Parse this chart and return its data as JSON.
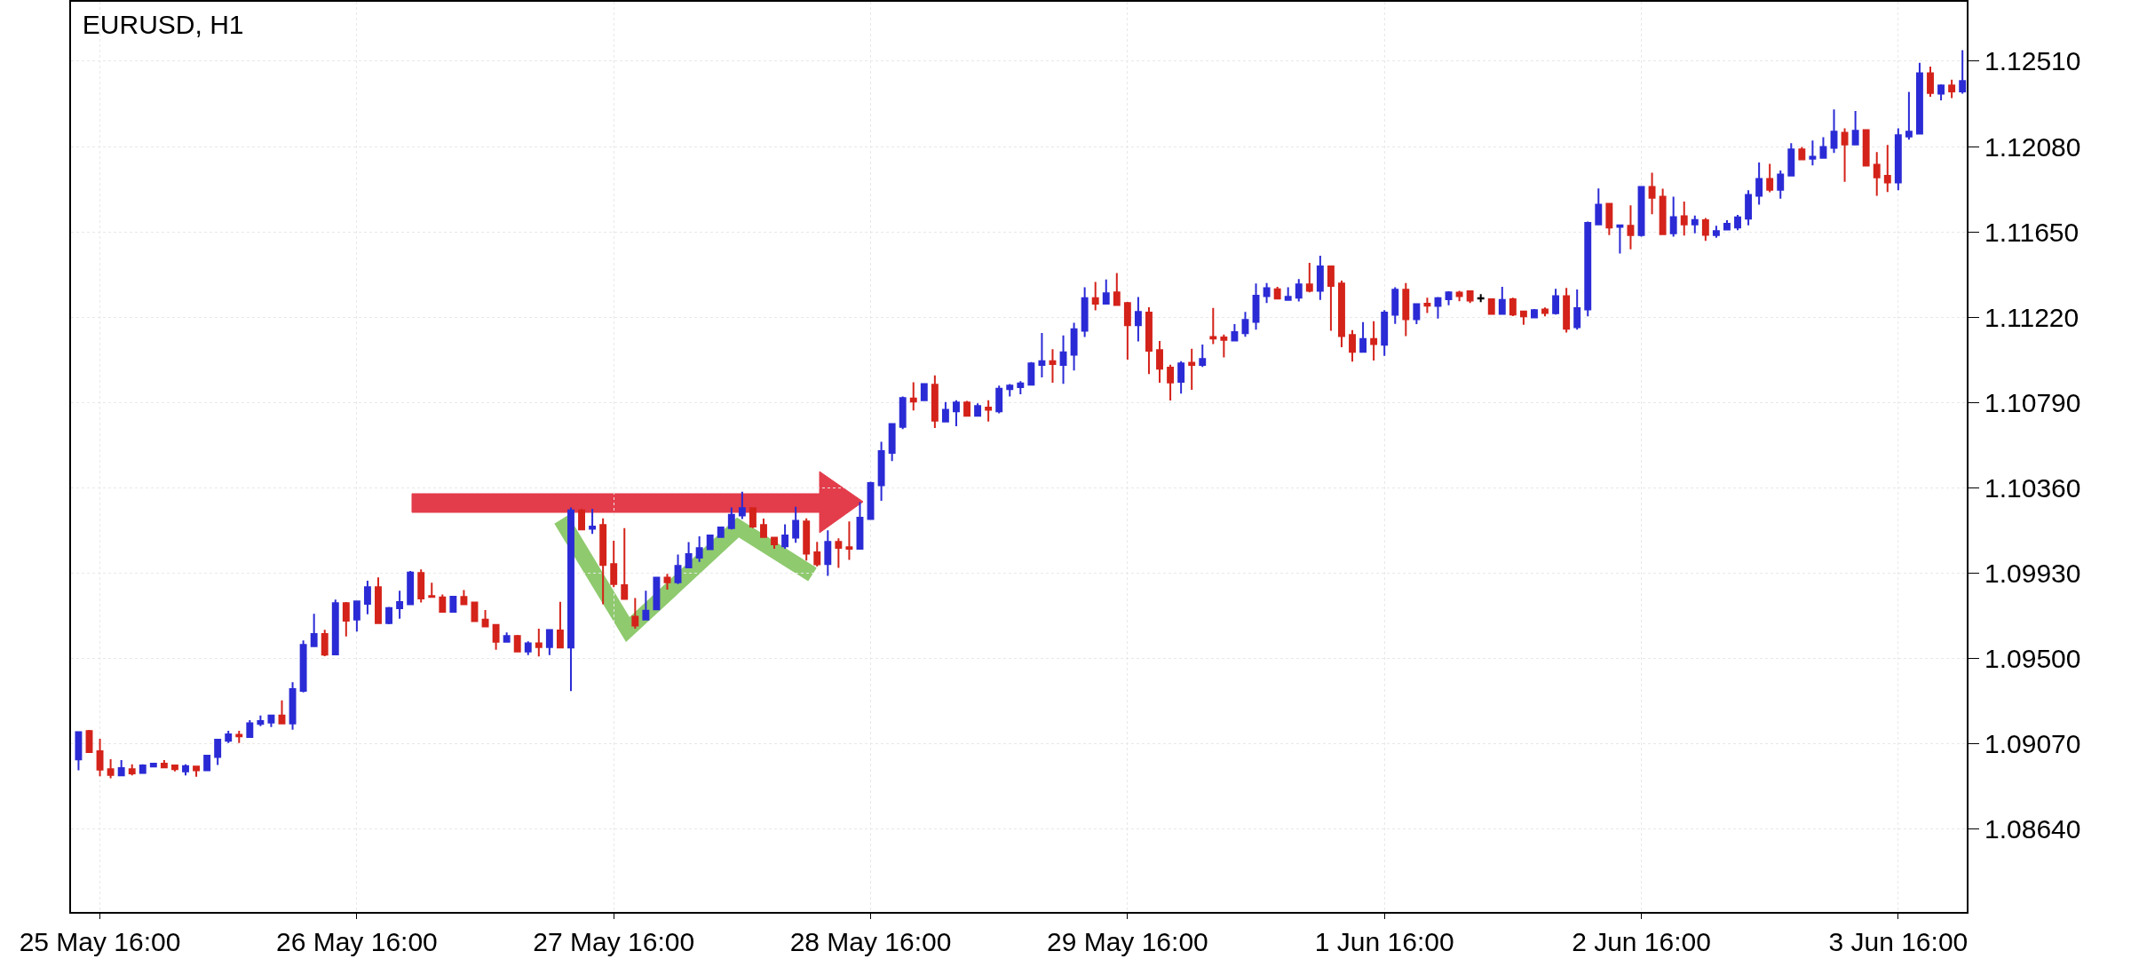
{
  "chart_data": {
    "type": "candlestick",
    "title": "EURUSD, H1",
    "categories": [
      null,
      null,
      "25 May 16:00",
      null,
      null,
      null,
      null,
      null,
      null,
      null,
      null,
      null,
      null,
      null,
      null,
      null,
      null,
      null,
      null,
      null,
      null,
      null,
      null,
      null,
      null,
      null,
      "26 May 16:00",
      null,
      null,
      null,
      null,
      null,
      null,
      null,
      null,
      null,
      null,
      null,
      null,
      null,
      null,
      null,
      null,
      null,
      null,
      null,
      null,
      null,
      null,
      null,
      "27 May 16:00",
      null,
      null,
      null,
      null,
      null,
      null,
      null,
      null,
      null,
      null,
      null,
      null,
      null,
      null,
      null,
      null,
      null,
      null,
      null,
      null,
      null,
      null,
      null,
      "28 May 16:00",
      null,
      null,
      null,
      null,
      null,
      null,
      null,
      null,
      null,
      null,
      null,
      null,
      null,
      null,
      null,
      null,
      null,
      null,
      null,
      null,
      null,
      null,
      null,
      "29 May 16:00",
      null,
      null,
      null,
      null,
      null,
      null,
      null,
      null,
      null,
      null,
      null,
      null,
      null,
      null,
      null,
      null,
      null,
      null,
      null,
      null,
      null,
      null,
      null,
      "1 Jun 16:00",
      null,
      null,
      null,
      null,
      null,
      null,
      null,
      null,
      null,
      null,
      null,
      null,
      null,
      null,
      null,
      null,
      null,
      null,
      null,
      null,
      null,
      null,
      null,
      "2 Jun 16:00",
      null,
      null,
      null,
      null,
      null,
      null,
      null,
      null,
      null,
      null,
      null,
      null,
      null,
      null,
      null,
      null,
      null,
      null,
      null,
      null,
      null,
      null,
      null,
      "3 Jun 16:00",
      null,
      null,
      null,
      null,
      null,
      null
    ],
    "ohlc": [
      [
        1.08989,
        1.0913,
        1.08934,
        1.09127
      ],
      [
        1.09132,
        1.09138,
        1.09023,
        1.09026
      ],
      [
        1.09031,
        1.09093,
        1.08904,
        1.08938
      ],
      [
        1.0894,
        1.0899,
        1.08894,
        1.08911
      ],
      [
        1.08908,
        1.08986,
        1.08908,
        1.08946
      ],
      [
        1.0894,
        1.08964,
        1.08908,
        1.08919
      ],
      [
        1.08921,
        1.08964,
        1.08919,
        1.08959
      ],
      [
        1.08953,
        1.08971,
        1.08952,
        1.08968
      ],
      [
        1.08968,
        1.08986,
        1.08949,
        1.08949
      ],
      [
        1.08959,
        1.08959,
        1.08929,
        1.0894
      ],
      [
        1.08929,
        1.08964,
        1.08908,
        1.08955
      ],
      [
        1.08953,
        1.08953,
        1.08902,
        1.08934
      ],
      [
        1.08934,
        1.09008,
        1.08934,
        1.09008
      ],
      [
        1.09001,
        1.09093,
        1.08961,
        1.09089
      ],
      [
        1.09083,
        1.09134,
        1.09072,
        1.09116
      ],
      [
        1.09113,
        1.09134,
        1.09072,
        1.09105
      ],
      [
        1.09102,
        1.09187,
        1.09099,
        1.09172
      ],
      [
        1.09168,
        1.09211,
        1.09157,
        1.09183
      ],
      [
        1.09175,
        1.09214,
        1.09153,
        1.09211
      ],
      [
        1.09211,
        1.09287,
        1.09171,
        1.09171
      ],
      [
        1.09171,
        1.09379,
        1.09139,
        1.09344
      ],
      [
        1.09335,
        1.09589,
        1.09327,
        1.09567
      ],
      [
        1.0956,
        1.09724,
        1.0956,
        1.09622
      ],
      [
        1.09622,
        1.09643,
        1.0951,
        1.09518
      ],
      [
        1.09519,
        1.09795,
        1.09515,
        1.09777
      ],
      [
        1.09777,
        1.09783,
        1.09609,
        1.09689
      ],
      [
        1.09694,
        1.09791,
        1.09634,
        1.09786
      ],
      [
        1.09774,
        1.0989,
        1.09721,
        1.09858
      ],
      [
        1.09858,
        1.09907,
        1.09676,
        1.09676
      ],
      [
        1.09676,
        1.09758,
        1.09671,
        1.09753
      ],
      [
        1.09751,
        1.0984,
        1.09699,
        1.09783
      ],
      [
        1.09772,
        1.0994,
        1.09772,
        1.09932
      ],
      [
        1.0993,
        1.09947,
        1.09781,
        1.09801
      ],
      [
        1.09813,
        1.0988,
        1.09809,
        1.09809
      ],
      [
        1.09806,
        1.09821,
        1.09731,
        1.09734
      ],
      [
        1.09734,
        1.09813,
        1.09734,
        1.0981
      ],
      [
        1.09809,
        1.09843,
        1.09772,
        1.09772
      ],
      [
        1.09781,
        1.09784,
        1.09687,
        1.09687
      ],
      [
        1.09694,
        1.09742,
        1.0966,
        1.0966
      ],
      [
        1.09667,
        1.09672,
        1.09542,
        1.09582
      ],
      [
        1.09582,
        1.0963,
        1.09582,
        1.09612
      ],
      [
        1.09612,
        1.09617,
        1.0953,
        1.09533
      ],
      [
        1.09533,
        1.09585,
        1.09515,
        1.09575
      ],
      [
        1.09575,
        1.09649,
        1.09508,
        1.09556
      ],
      [
        1.09556,
        1.09642,
        1.09515,
        1.09642
      ],
      [
        1.09639,
        1.09784,
        1.09553,
        1.09553
      ],
      [
        1.09553,
        1.1026,
        1.09334,
        1.10245
      ],
      [
        1.10245,
        1.10253,
        1.10149,
        1.10149
      ],
      [
        1.10152,
        1.10253,
        1.10126,
        1.10163
      ],
      [
        1.10171,
        1.10205,
        1.09772,
        1.0997
      ],
      [
        1.09974,
        1.10092,
        1.09858,
        1.09873
      ],
      [
        1.09868,
        1.10156,
        1.09798,
        1.09798
      ],
      [
        1.09709,
        1.09803,
        1.09649,
        1.09664
      ],
      [
        1.09694,
        1.0984,
        1.09694,
        1.09739
      ],
      [
        1.09746,
        1.09906,
        1.09746,
        1.09906
      ],
      [
        1.09906,
        1.09925,
        1.09846,
        1.09883
      ],
      [
        1.09883,
        1.10022,
        1.09873,
        1.09965
      ],
      [
        1.09958,
        1.10085,
        1.09958,
        1.10025
      ],
      [
        1.10007,
        1.10114,
        1.09985,
        1.10055
      ],
      [
        1.10049,
        1.10119,
        1.10049,
        1.10119
      ],
      [
        1.10111,
        1.10163,
        1.10111,
        1.10159
      ],
      [
        1.10156,
        1.1026,
        1.10149,
        1.10223
      ],
      [
        1.10219,
        1.10339,
        1.10201,
        1.10256
      ],
      [
        1.10256,
        1.1026,
        1.10156,
        1.10164
      ],
      [
        1.10171,
        1.10204,
        1.10111,
        1.10111
      ],
      [
        1.10107,
        1.10107,
        1.10052,
        1.10074
      ],
      [
        1.10064,
        1.10175,
        1.10052,
        1.10119
      ],
      [
        1.10107,
        1.10263,
        1.10082,
        1.10193
      ],
      [
        1.10189,
        1.10205,
        1.09992,
        1.10027
      ],
      [
        1.10034,
        1.10086,
        1.09962,
        1.09973
      ],
      [
        1.09974,
        1.10144,
        1.09915,
        1.10086
      ],
      [
        1.10086,
        1.10104,
        1.09955,
        1.10056
      ],
      [
        1.10059,
        1.10189,
        1.09995,
        1.10052
      ],
      [
        1.10052,
        1.10287,
        1.10052,
        1.10208
      ],
      [
        1.10201,
        1.1039,
        1.10201,
        1.10383
      ],
      [
        1.10372,
        1.10591,
        1.10293,
        1.10544
      ],
      [
        1.10535,
        1.10681,
        1.10494,
        1.10681
      ],
      [
        1.10666,
        1.10819,
        1.10655,
        1.10812
      ],
      [
        1.10809,
        1.10891,
        1.10749,
        1.10794
      ],
      [
        1.108,
        1.10886,
        1.108,
        1.10882
      ],
      [
        1.10879,
        1.10926,
        1.1066,
        1.10697
      ],
      [
        1.10693,
        1.10792,
        1.10693,
        1.10752
      ],
      [
        1.10745,
        1.10801,
        1.1067,
        1.10789
      ],
      [
        1.10789,
        1.10797,
        1.10722,
        1.10722
      ],
      [
        1.10722,
        1.10785,
        1.10719,
        1.10771
      ],
      [
        1.10764,
        1.10801,
        1.10693,
        1.10752
      ],
      [
        1.10745,
        1.10874,
        1.10734,
        1.10859
      ],
      [
        1.10856,
        1.10882,
        1.10819,
        1.10874
      ],
      [
        1.10867,
        1.10897,
        1.10831,
        1.10886
      ],
      [
        1.10879,
        1.10993,
        1.10879,
        1.10986
      ],
      [
        1.10979,
        1.1114,
        1.10916,
        1.10998
      ],
      [
        1.10998,
        1.11058,
        1.10889,
        1.10983
      ],
      [
        1.10978,
        1.11127,
        1.10883,
        1.11042
      ],
      [
        1.1103,
        1.11191,
        1.1095,
        1.11159
      ],
      [
        1.11151,
        1.1137,
        1.1112,
        1.11315
      ],
      [
        1.11315,
        1.11397,
        1.11254,
        1.11288
      ],
      [
        1.11288,
        1.1141,
        1.11285,
        1.1134
      ],
      [
        1.11345,
        1.11442,
        1.11281,
        1.11281
      ],
      [
        1.11291,
        1.11296,
        1.11005,
        1.11179
      ],
      [
        1.11179,
        1.11321,
        1.11097,
        1.11246
      ],
      [
        1.11243,
        1.1127,
        1.10933,
        1.1105
      ],
      [
        1.11054,
        1.11099,
        1.10889,
        1.1096
      ],
      [
        1.10965,
        1.1098,
        1.10799,
        1.1089
      ],
      [
        1.10893,
        1.10998,
        1.10834,
        1.10986
      ],
      [
        1.1099,
        1.1106,
        1.10853,
        1.10978
      ],
      [
        1.10978,
        1.11082,
        1.10968,
        1.11009
      ],
      [
        1.1112,
        1.11266,
        1.11084,
        1.11112
      ],
      [
        1.11117,
        1.11132,
        1.11017,
        1.11105
      ],
      [
        1.11102,
        1.11184,
        1.11102,
        1.11144
      ],
      [
        1.11139,
        1.11246,
        1.11121,
        1.11206
      ],
      [
        1.11196,
        1.11389,
        1.11157,
        1.11328
      ],
      [
        1.11325,
        1.11392,
        1.11291,
        1.11366
      ],
      [
        1.1136,
        1.11373,
        1.11313,
        1.11313
      ],
      [
        1.11307,
        1.1137,
        1.11307,
        1.11322
      ],
      [
        1.11318,
        1.11412,
        1.11299,
        1.11385
      ],
      [
        1.11385,
        1.11494,
        1.11345,
        1.11352
      ],
      [
        1.11352,
        1.11529,
        1.11307,
        1.11476
      ],
      [
        1.11476,
        1.11476,
        1.11151,
        1.11377
      ],
      [
        1.11389,
        1.11404,
        1.11068,
        1.11124
      ],
      [
        1.1113,
        1.11154,
        1.10995,
        1.11045
      ],
      [
        1.11045,
        1.11194,
        1.11045,
        1.11109
      ],
      [
        1.11109,
        1.11199,
        1.11001,
        1.11084
      ],
      [
        1.1108,
        1.11255,
        1.11024,
        1.11243
      ],
      [
        1.11231,
        1.1137,
        1.11186,
        1.11358
      ],
      [
        1.11358,
        1.11392,
        1.11124,
        1.11209
      ],
      [
        1.11209,
        1.11285,
        1.11184,
        1.11285
      ],
      [
        1.11288,
        1.11318,
        1.1124,
        1.11277
      ],
      [
        1.11276,
        1.11321,
        1.11213,
        1.11315
      ],
      [
        1.1131,
        1.1135,
        1.1128,
        1.11344
      ],
      [
        1.11343,
        1.11352,
        1.113,
        1.11325
      ],
      [
        1.1135,
        1.11355,
        1.11291,
        1.11303
      ],
      [
        1.11316,
        1.11336,
        1.11295,
        1.11313
      ],
      [
        1.1131,
        1.11313,
        1.11231,
        1.11236
      ],
      [
        1.11236,
        1.11373,
        1.11236,
        1.11306
      ],
      [
        1.1131,
        1.11318,
        1.11225,
        1.11233
      ],
      [
        1.11248,
        1.11248,
        1.11181,
        1.11224
      ],
      [
        1.11218,
        1.11261,
        1.11218,
        1.11255
      ],
      [
        1.11258,
        1.11268,
        1.11224,
        1.1124
      ],
      [
        1.11239,
        1.11362,
        1.11233,
        1.11325
      ],
      [
        1.11325,
        1.11367,
        1.11142,
        1.11161
      ],
      [
        1.11169,
        1.11359,
        1.11157,
        1.11265
      ],
      [
        1.11258,
        1.11702,
        1.11224,
        1.11695
      ],
      [
        1.11687,
        1.11869,
        1.11687,
        1.11787
      ],
      [
        1.11791,
        1.11794,
        1.11633,
        1.11671
      ],
      [
        1.11675,
        1.11687,
        1.11541,
        1.11683
      ],
      [
        1.1168,
        1.11783,
        1.11562,
        1.11633
      ],
      [
        1.11633,
        1.11876,
        1.11626,
        1.11876
      ],
      [
        1.11876,
        1.11948,
        1.11739,
        1.11821
      ],
      [
        1.11827,
        1.11867,
        1.11638,
        1.11638
      ],
      [
        1.11642,
        1.11827,
        1.11626,
        1.11724
      ],
      [
        1.11729,
        1.11802,
        1.11631,
        1.11687
      ],
      [
        1.11687,
        1.11732,
        1.11642,
        1.11709
      ],
      [
        1.11708,
        1.1172,
        1.11604,
        1.11635
      ],
      [
        1.11633,
        1.1168,
        1.1162,
        1.11653
      ],
      [
        1.11661,
        1.11708,
        1.11661,
        1.1169
      ],
      [
        1.11671,
        1.11735,
        1.11658,
        1.11723
      ],
      [
        1.11716,
        1.11859,
        1.11683,
        1.11836
      ],
      [
        1.11832,
        1.11999,
        1.11787,
        1.11917
      ],
      [
        1.11917,
        1.11993,
        1.1185,
        1.11862
      ],
      [
        1.11862,
        1.11959,
        1.11817,
        1.11939
      ],
      [
        1.11933,
        1.12097,
        1.11929,
        1.12066
      ],
      [
        1.12066,
        1.12078,
        1.12015,
        1.12015
      ],
      [
        1.12018,
        1.1211,
        1.11985,
        1.12029
      ],
      [
        1.12023,
        1.12127,
        1.12023,
        1.12078
      ],
      [
        1.12073,
        1.12267,
        1.12048,
        1.12155
      ],
      [
        1.12149,
        1.12172,
        1.11902,
        1.1209
      ],
      [
        1.1209,
        1.12259,
        1.1209,
        1.1216
      ],
      [
        1.12163,
        1.12167,
        1.11984,
        1.11984
      ],
      [
        1.11988,
        1.12052,
        1.11832,
        1.11924
      ],
      [
        1.11932,
        1.12088,
        1.11851,
        1.11899
      ],
      [
        1.11899,
        1.12172,
        1.11859,
        1.12137
      ],
      [
        1.1213,
        1.12356,
        1.12115,
        1.12155
      ],
      [
        1.12145,
        1.12502,
        1.12145,
        1.1245
      ],
      [
        1.1245,
        1.12483,
        1.12331,
        1.1235
      ],
      [
        1.12346,
        1.12394,
        1.12313,
        1.12388
      ],
      [
        1.12388,
        1.12417,
        1.12324,
        1.12358
      ],
      [
        1.12358,
        1.12566,
        1.12346,
        1.1241
      ]
    ],
    "colors": [
      "#2b2bd6",
      "#d4231a",
      "#d4231a",
      "#d4231a",
      "#2b2bd6",
      "#d4231a",
      "#2b2bd6",
      "#2b2bd6",
      "#d4231a",
      "#d4231a",
      "#2b2bd6",
      "#d4231a",
      "#2b2bd6",
      "#2b2bd6",
      "#2b2bd6",
      "#d4231a",
      "#2b2bd6",
      "#2b2bd6",
      "#2b2bd6",
      "#d4231a",
      "#2b2bd6",
      "#2b2bd6",
      "#2b2bd6",
      "#d4231a",
      "#2b2bd6",
      "#d4231a",
      "#2b2bd6",
      "#2b2bd6",
      "#d4231a",
      "#2b2bd6",
      "#2b2bd6",
      "#2b2bd6",
      "#d4231a",
      "#d4231a",
      "#d4231a",
      "#2b2bd6",
      "#d4231a",
      "#d4231a",
      "#d4231a",
      "#d4231a",
      "#2b2bd6",
      "#d4231a",
      "#2b2bd6",
      "#d4231a",
      "#2b2bd6",
      "#d4231a",
      "#2b2bd6",
      "#d4231a",
      "#2b2bd6",
      "#d4231a",
      "#d4231a",
      "#d4231a",
      "#d4231a",
      "#2b2bd6",
      "#2b2bd6",
      "#d4231a",
      "#2b2bd6",
      "#2b2bd6",
      "#2b2bd6",
      "#2b2bd6",
      "#2b2bd6",
      "#2b2bd6",
      "#2b2bd6",
      "#d4231a",
      "#d4231a",
      "#d4231a",
      "#2b2bd6",
      "#2b2bd6",
      "#d4231a",
      "#d4231a",
      "#2b2bd6",
      "#d4231a",
      "#d4231a",
      "#2b2bd6",
      "#2b2bd6",
      "#2b2bd6",
      "#2b2bd6",
      "#2b2bd6",
      "#d4231a",
      "#2b2bd6",
      "#d4231a",
      "#2b2bd6",
      "#2b2bd6",
      "#d4231a",
      "#2b2bd6",
      "#d4231a",
      "#2b2bd6",
      "#2b2bd6",
      "#2b2bd6",
      "#2b2bd6",
      "#2b2bd6",
      "#d4231a",
      "#2b2bd6",
      "#2b2bd6",
      "#2b2bd6",
      "#d4231a",
      "#2b2bd6",
      "#d4231a",
      "#d4231a",
      "#2b2bd6",
      "#d4231a",
      "#d4231a",
      "#d4231a",
      "#2b2bd6",
      "#d4231a",
      "#2b2bd6",
      "#d4231a",
      "#d4231a",
      "#2b2bd6",
      "#2b2bd6",
      "#2b2bd6",
      "#2b2bd6",
      "#d4231a",
      "#2b2bd6",
      "#2b2bd6",
      "#d4231a",
      "#2b2bd6",
      "#d4231a",
      "#d4231a",
      "#d4231a",
      "#2b2bd6",
      "#d4231a",
      "#2b2bd6",
      "#2b2bd6",
      "#d4231a",
      "#2b2bd6",
      "#d4231a",
      "#2b2bd6",
      "#2b2bd6",
      "#d4231a",
      "#d4231a",
      "#000000",
      "#d4231a",
      "#2b2bd6",
      "#d4231a",
      "#d4231a",
      "#2b2bd6",
      "#d4231a",
      "#2b2bd6",
      "#d4231a",
      "#2b2bd6",
      "#2b2bd6",
      "#2b2bd6",
      "#d4231a",
      "#2b2bd6",
      "#d4231a",
      "#2b2bd6",
      "#d4231a",
      "#d4231a",
      "#2b2bd6",
      "#d4231a",
      "#2b2bd6",
      "#d4231a",
      "#2b2bd6",
      "#2b2bd6",
      "#2b2bd6",
      "#2b2bd6",
      "#2b2bd6",
      "#d4231a",
      "#2b2bd6",
      "#2b2bd6",
      "#d4231a",
      "#2b2bd6",
      "#2b2bd6",
      "#2b2bd6",
      "#d4231a",
      "#2b2bd6",
      "#d4231a",
      "#d4231a",
      "#d4231a",
      "#2b2bd6",
      "#2b2bd6",
      "#2b2bd6",
      "#d4231a",
      "#2b2bd6",
      "#d4231a",
      "#2b2bd6"
    ],
    "ylim": [
      1.0822,
      1.1281
    ],
    "yticks": [
      {
        "value": 1.0864,
        "label": "1.08640"
      },
      {
        "value": 1.0907,
        "label": "1.09070"
      },
      {
        "value": 1.095,
        "label": "1.09500"
      },
      {
        "value": 1.0993,
        "label": "1.09930"
      },
      {
        "value": 1.1036,
        "label": "1.10360"
      },
      {
        "value": 1.1079,
        "label": "1.10790"
      },
      {
        "value": 1.1122,
        "label": "1.11220"
      },
      {
        "value": 1.1165,
        "label": "1.11650"
      },
      {
        "value": 1.1208,
        "label": "1.12080"
      },
      {
        "value": 1.1251,
        "label": "1.12510"
      }
    ],
    "grid": true
  }
}
